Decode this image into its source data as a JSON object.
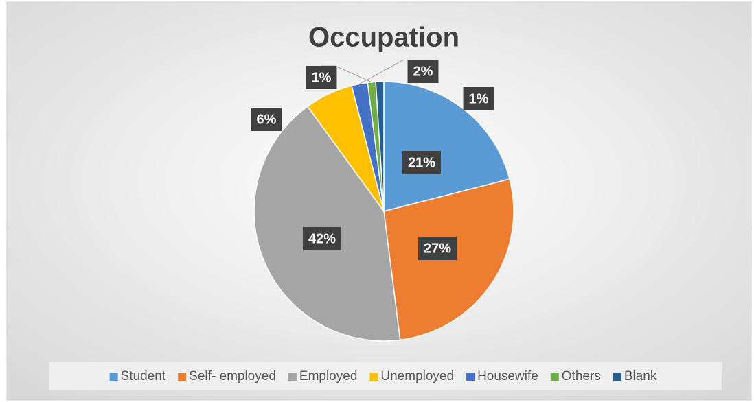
{
  "chart_data": {
    "type": "pie",
    "title": "Occupation",
    "categories": [
      "Student",
      "Self- employed",
      "Employed",
      "Unemployed",
      "Housewife",
      "Others",
      "Blank"
    ],
    "values": [
      21,
      27,
      42,
      6,
      2,
      1,
      1
    ],
    "value_labels": [
      "21%",
      "27%",
      "42%",
      "6%",
      "2%",
      "1%",
      "1%"
    ],
    "colors": [
      "#5b9bd5",
      "#ed7d31",
      "#a5a5a5",
      "#ffc000",
      "#4472c4",
      "#70ad47",
      "#255e91"
    ],
    "legend": "bottom"
  }
}
